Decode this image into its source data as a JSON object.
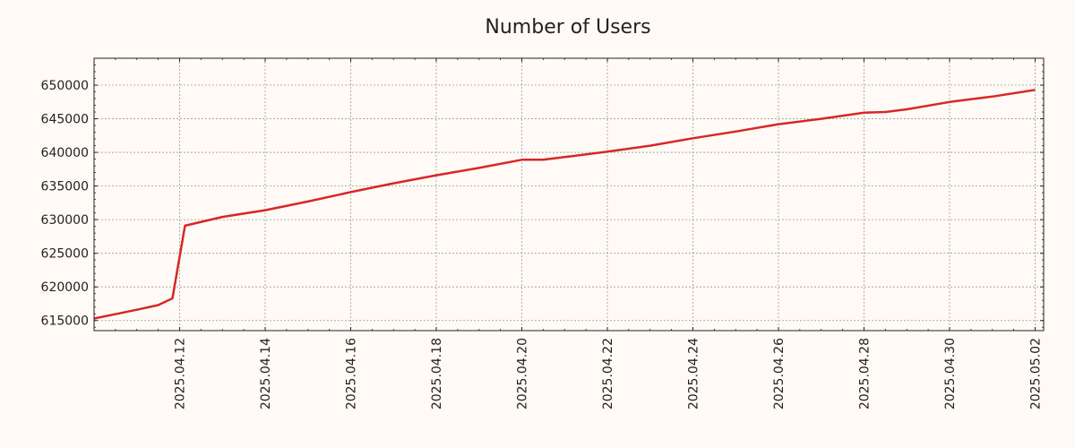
{
  "chart_data": {
    "type": "line",
    "title": "Number of Users",
    "xlabel": "",
    "ylabel": "",
    "grid": true,
    "colors": {
      "line": "#d62728",
      "background": "#fffaf5",
      "plot_background": "#fffaf5",
      "grid": "#999999",
      "axis": "#222222"
    },
    "x_range": [
      "2025-04-10",
      "2025-05-02"
    ],
    "ylim": [
      613500,
      654000
    ],
    "x_ticks": [
      "2025.04.12",
      "2025.04.14",
      "2025.04.16",
      "2025.04.18",
      "2025.04.20",
      "2025.04.22",
      "2025.04.24",
      "2025.04.26",
      "2025.04.28",
      "2025.04.30",
      "2025.05.02"
    ],
    "y_ticks": [
      "615000",
      "620000",
      "625000",
      "630000",
      "635000",
      "640000",
      "645000",
      "650000"
    ],
    "series": [
      {
        "x": [
          "2025-04-10",
          "2025-04-11",
          "2025-04-11 12:00",
          "2025-04-11 20:00",
          "2025-04-12 03:00",
          "2025-04-13",
          "2025-04-14",
          "2025-04-15",
          "2025-04-16",
          "2025-04-17",
          "2025-04-18",
          "2025-04-19",
          "2025-04-20",
          "2025-04-20 12:00",
          "2025-04-21",
          "2025-04-22",
          "2025-04-23",
          "2025-04-24",
          "2025-04-25",
          "2025-04-26",
          "2025-04-27",
          "2025-04-28",
          "2025-04-28 12:00",
          "2025-04-29",
          "2025-04-30",
          "2025-05-01",
          "2025-05-02"
        ],
        "y": [
          615300,
          616600,
          617300,
          618300,
          629100,
          630400,
          631400,
          632700,
          634100,
          635400,
          636600,
          637700,
          638900,
          638900,
          639300,
          640100,
          641000,
          642100,
          643100,
          644200,
          645000,
          645900,
          646000,
          646400,
          647500,
          648300,
          649300
        ]
      }
    ]
  }
}
